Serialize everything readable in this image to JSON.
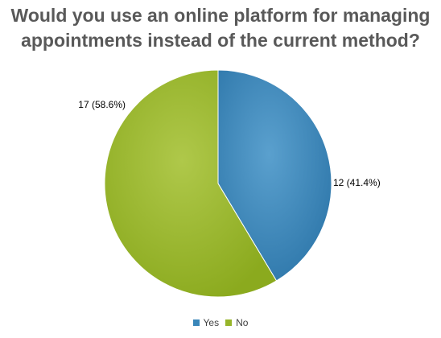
{
  "chart_data": {
    "type": "pie",
    "title": "Would you use an online platform for managing appointments instead of the current method?",
    "slices": [
      {
        "name": "Yes",
        "value": 41.4,
        "label": "12 (41.4%)",
        "color": "#3A87BA"
      },
      {
        "name": "No",
        "value": 58.6,
        "label": "17 (58.6%)",
        "color": "#97B52A"
      }
    ],
    "legend": [
      "Yes",
      "No"
    ],
    "legend_position": "bottom"
  },
  "colors": {
    "yes": "#3A87BA",
    "no": "#97B52A",
    "title": "#595959"
  }
}
